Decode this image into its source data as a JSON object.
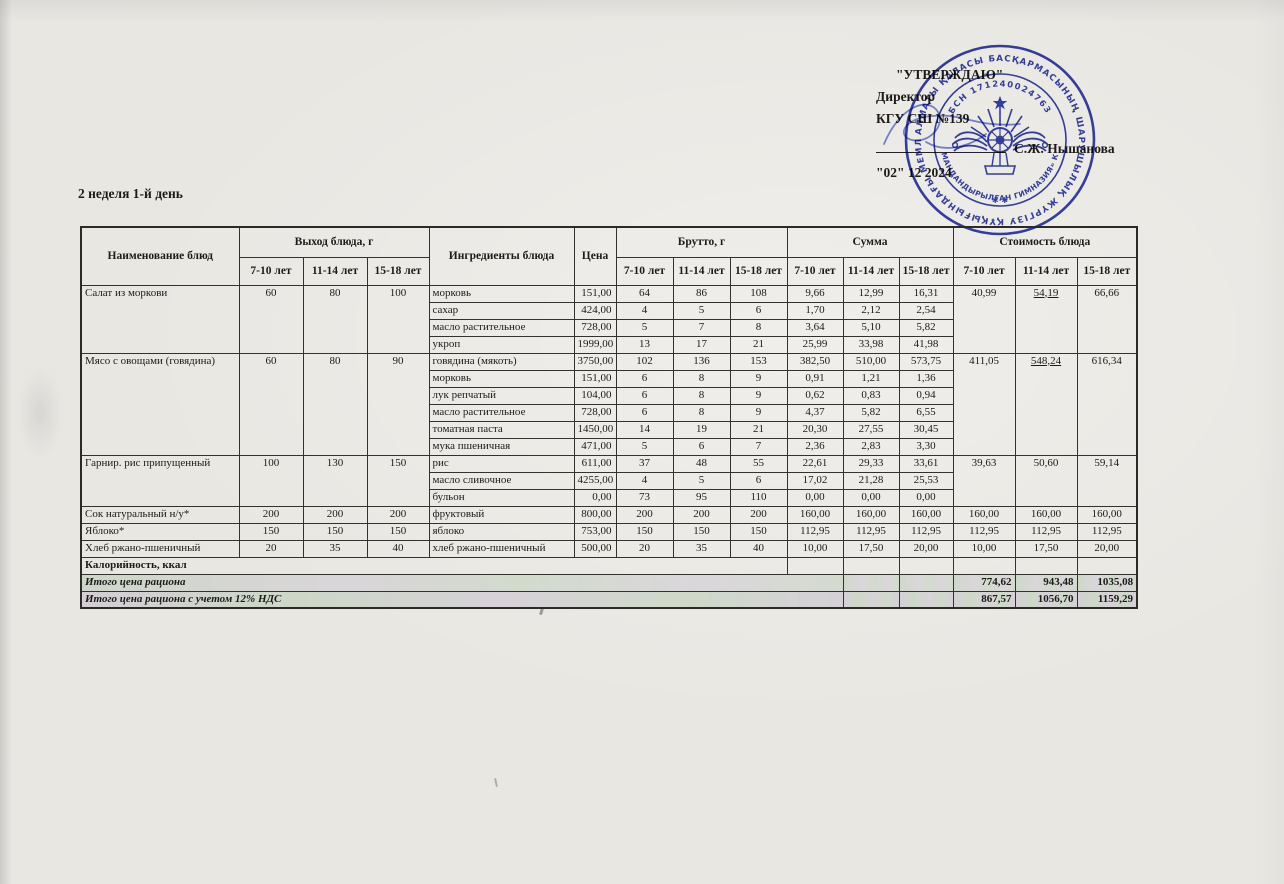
{
  "page": {
    "title": "2 неделя 1-й день"
  },
  "approval": {
    "line1": "\"УТВЕРЖДАЮ\"",
    "line2": "Директор",
    "line3": "КГУ СШ №139",
    "signature_name": "С.Ж. Нышанова",
    "date_line": "\"02\" 12 2024"
  },
  "stamp": {
    "color": "#2833a6",
    "outer_text": "АЛМАТЫ ҚАЛАСЫ БАСҚАРМАСЫНЫҢ ШАРУШЫЛЫҚ ЖҮРГІЗУ ҚҰҚЫҒЫНДАҒЫ МЕМЛЕКЕТТІК КОММУНАЛДЫҚ КӘСІПОРНЫ",
    "inner_top_text": "БСН 171240024763",
    "inner_bottom_text": "«№139 МАМАНДАНДЫРЫЛҒАН ГИМНАЗИЯ» КӘСІПОРНЫ",
    "stars": "✱ ✱"
  },
  "table": {
    "headers": {
      "name": "Наименование блюд",
      "out_group": "Выход блюда, г",
      "ingredients": "Ингредиенты блюда",
      "price": "Цена",
      "brutto_group": "Брутто, г",
      "sum_group": "Сумма",
      "cost_group": "Стоимость блюда",
      "ages": [
        "7-10 лет",
        "11-14 лет",
        "15-18 лет"
      ]
    },
    "groups": [
      {
        "name": "Салат из моркови",
        "out": [
          "60",
          "80",
          "100"
        ],
        "cost": [
          "40,99",
          "54,19",
          "66,66"
        ],
        "cost_underline": [
          false,
          true,
          false
        ],
        "ingredients": [
          {
            "name": "морковь",
            "price": "151,00",
            "brutto": [
              "64",
              "86",
              "108"
            ],
            "sum": [
              "9,66",
              "12,99",
              "16,31"
            ]
          },
          {
            "name": "сахар",
            "price": "424,00",
            "brutto": [
              "4",
              "5",
              "6"
            ],
            "sum": [
              "1,70",
              "2,12",
              "2,54"
            ]
          },
          {
            "name": "масло растительное",
            "price": "728,00",
            "brutto": [
              "5",
              "7",
              "8"
            ],
            "sum": [
              "3,64",
              "5,10",
              "5,82"
            ]
          },
          {
            "name": "укроп",
            "price": "1999,00",
            "brutto": [
              "13",
              "17",
              "21"
            ],
            "sum": [
              "25,99",
              "33,98",
              "41,98"
            ]
          }
        ]
      },
      {
        "name": "Мясо с овощами (говядина)",
        "out": [
          "60",
          "80",
          "90"
        ],
        "cost": [
          "411,05",
          "548,24",
          "616,34"
        ],
        "cost_underline": [
          false,
          true,
          false
        ],
        "ingredients": [
          {
            "name": "говядина (мякоть)",
            "price": "3750,00",
            "brutto": [
              "102",
              "136",
              "153"
            ],
            "sum": [
              "382,50",
              "510,00",
              "573,75"
            ]
          },
          {
            "name": "морковь",
            "price": "151,00",
            "brutto": [
              "6",
              "8",
              "9"
            ],
            "sum": [
              "0,91",
              "1,21",
              "1,36"
            ]
          },
          {
            "name": "лук репчатый",
            "price": "104,00",
            "brutto": [
              "6",
              "8",
              "9"
            ],
            "sum": [
              "0,62",
              "0,83",
              "0,94"
            ]
          },
          {
            "name": "масло растительное",
            "price": "728,00",
            "brutto": [
              "6",
              "8",
              "9"
            ],
            "sum": [
              "4,37",
              "5,82",
              "6,55"
            ]
          },
          {
            "name": "томатная паста",
            "price": "1450,00",
            "brutto": [
              "14",
              "19",
              "21"
            ],
            "sum": [
              "20,30",
              "27,55",
              "30,45"
            ]
          },
          {
            "name": "мука пшеничная",
            "price": "471,00",
            "brutto": [
              "5",
              "6",
              "7"
            ],
            "sum": [
              "2,36",
              "2,83",
              "3,30"
            ]
          }
        ]
      },
      {
        "name": "Гарнир. рис припущенный",
        "out": [
          "100",
          "130",
          "150"
        ],
        "cost": [
          "39,63",
          "50,60",
          "59,14"
        ],
        "cost_underline": [
          false,
          false,
          false
        ],
        "ingredients": [
          {
            "name": "рис",
            "price": "611,00",
            "brutto": [
              "37",
              "48",
              "55"
            ],
            "sum": [
              "22,61",
              "29,33",
              "33,61"
            ]
          },
          {
            "name": "масло сливочное",
            "price": "4255,00",
            "brutto": [
              "4",
              "5",
              "6"
            ],
            "sum": [
              "17,02",
              "21,28",
              "25,53"
            ]
          },
          {
            "name": "бульон",
            "price": "0,00",
            "brutto": [
              "73",
              "95",
              "110"
            ],
            "sum": [
              "0,00",
              "0,00",
              "0,00"
            ]
          }
        ]
      },
      {
        "name": "Сок натуральный н/у*",
        "out": [
          "200",
          "200",
          "200"
        ],
        "cost": [
          "160,00",
          "160,00",
          "160,00"
        ],
        "cost_underline": [
          false,
          false,
          false
        ],
        "ingredients": [
          {
            "name": "фруктовый",
            "price": "800,00",
            "brutto": [
              "200",
              "200",
              "200"
            ],
            "sum": [
              "160,00",
              "160,00",
              "160,00"
            ]
          }
        ]
      },
      {
        "name": "Яблоко*",
        "out": [
          "150",
          "150",
          "150"
        ],
        "cost": [
          "112,95",
          "112,95",
          "112,95"
        ],
        "cost_underline": [
          false,
          false,
          false
        ],
        "ingredients": [
          {
            "name": "яблоко",
            "price": "753,00",
            "brutto": [
              "150",
              "150",
              "150"
            ],
            "sum": [
              "112,95",
              "112,95",
              "112,95"
            ]
          }
        ]
      },
      {
        "name": "Хлеб ржано-пшеничный",
        "out": [
          "20",
          "35",
          "40"
        ],
        "cost": [
          "10,00",
          "17,50",
          "20,00"
        ],
        "cost_underline": [
          false,
          false,
          false
        ],
        "ingredients": [
          {
            "name": "хлеб ржано-пшеничный",
            "price": "500,00",
            "brutto": [
              "20",
              "35",
              "40"
            ],
            "sum": [
              "10,00",
              "17,50",
              "20,00"
            ]
          }
        ]
      }
    ],
    "footer_rows": [
      {
        "label": "Калорийность, ккал",
        "italic": false,
        "tint": "",
        "label_colspan": 9,
        "pre_empty": 3,
        "values": [
          "",
          "",
          ""
        ]
      },
      {
        "label": "Итого цена рациона",
        "italic": true,
        "tint": "tint1",
        "label_colspan": 10,
        "pre_empty": 2,
        "values": [
          "774,62",
          "943,48",
          "1035,08"
        ]
      },
      {
        "label": "Итого цена рациона с учетом 12% НДС",
        "italic": true,
        "tint": "tint2",
        "label_colspan": 10,
        "pre_empty": 2,
        "values": [
          "867,57",
          "1056,70",
          "1159,29"
        ]
      }
    ]
  }
}
